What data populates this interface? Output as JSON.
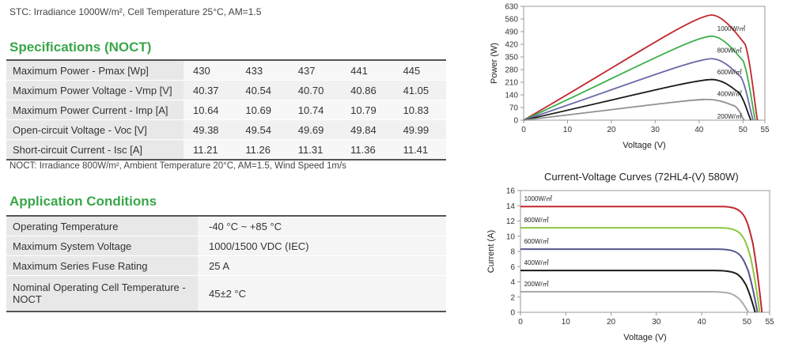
{
  "stc_note": "STC: Irradiance 1000W/m², Cell Temperature 25°C, AM=1.5",
  "spec_title": "Specifications (NOCT)",
  "spec_rows": [
    {
      "label": "Maximum Power - Pmax [Wp]",
      "values": [
        "430",
        "433",
        "437",
        "441",
        "445"
      ]
    },
    {
      "label": "Maximum Power Voltage - Vmp [V]",
      "values": [
        "40.37",
        "40.54",
        "40.70",
        "40.86",
        "41.05"
      ]
    },
    {
      "label": "Maximum Power Current - Imp [A]",
      "values": [
        "10.64",
        "10.69",
        "10.74",
        "10.79",
        "10.83"
      ]
    },
    {
      "label": "Open-circuit Voltage - Voc [V]",
      "values": [
        "49.38",
        "49.54",
        "49.69",
        "49.84",
        "49.99"
      ]
    },
    {
      "label": "Short-circuit Current - Isc [A]",
      "values": [
        "11.21",
        "11.26",
        "11.31",
        "11.36",
        "11.41"
      ]
    }
  ],
  "noct_note": "NOCT: Irradiance 800W/m², Ambient Temperature 20°C, AM=1.5, Wind Speed 1m/s",
  "app_title": "Application Conditions",
  "app_rows": [
    {
      "label": "Operating Temperature",
      "value": "-40 °C ~ +85 °C"
    },
    {
      "label": "Maximum System Voltage",
      "value": "1000/1500 VDC (IEC)"
    },
    {
      "label": "Maximum Series Fuse Rating",
      "value": "25 A"
    },
    {
      "label": "Nominal Operating Cell Temperature - NOCT",
      "value": "45±2 °C"
    }
  ],
  "iv_title": "Current-Voltage Curves (72HL4-(V) 580W)",
  "chart_data": [
    {
      "type": "line",
      "title": "",
      "xlabel": "Voltage (V)",
      "ylabel": "Power (W)",
      "xlim": [
        0,
        55
      ],
      "ylim": [
        0,
        630
      ],
      "xticks": [
        0,
        10,
        20,
        30,
        40,
        50,
        55
      ],
      "yticks": [
        0,
        70,
        140,
        210,
        280,
        350,
        420,
        490,
        560,
        630
      ],
      "grid": false,
      "series": [
        {
          "name": "1000W/㎡",
          "color": "#c0282d",
          "x": [
            0,
            43,
            50.5,
            53.3
          ],
          "y": [
            0,
            582,
            420,
            0
          ]
        },
        {
          "name": "800W/㎡",
          "color": "#3caf48",
          "x": [
            0,
            43,
            50,
            52.8
          ],
          "y": [
            0,
            465,
            330,
            0
          ]
        },
        {
          "name": "600W/㎡",
          "color": "#6a69a8",
          "x": [
            0,
            43,
            49.5,
            52.3
          ],
          "y": [
            0,
            340,
            240,
            0
          ]
        },
        {
          "name": "400W/㎡",
          "color": "#1a1a1a",
          "x": [
            0,
            43,
            49,
            51.8
          ],
          "y": [
            0,
            225,
            155,
            0
          ]
        },
        {
          "name": "200W/㎡",
          "color": "#909090",
          "x": [
            0,
            42,
            48,
            50.3
          ],
          "y": [
            0,
            115,
            80,
            0
          ]
        }
      ]
    },
    {
      "type": "line",
      "title": "Current-Voltage Curves (72HL4-(V) 580W)",
      "xlabel": "Voltage (V)",
      "ylabel": "Current (A)",
      "xlim": [
        0,
        55
      ],
      "ylim": [
        0,
        16
      ],
      "xticks": [
        0,
        10,
        20,
        30,
        40,
        50,
        55
      ],
      "yticks": [
        0,
        2,
        4,
        6,
        8,
        10,
        12,
        14,
        16
      ],
      "grid": false,
      "series": [
        {
          "name": "1000W/㎡",
          "color": "#c0282d",
          "isc": 13.9,
          "voc": 53.3
        },
        {
          "name": "800W/㎡",
          "color": "#8dc63f",
          "isc": 11.1,
          "voc": 52.8
        },
        {
          "name": "600W/㎡",
          "color": "#55558f",
          "isc": 8.3,
          "voc": 52.3
        },
        {
          "name": "400W/㎡",
          "color": "#1a1a1a",
          "isc": 5.5,
          "voc": 51.8
        },
        {
          "name": "200W/㎡",
          "color": "#aaaaaa",
          "isc": 2.7,
          "voc": 50.3
        }
      ]
    }
  ]
}
